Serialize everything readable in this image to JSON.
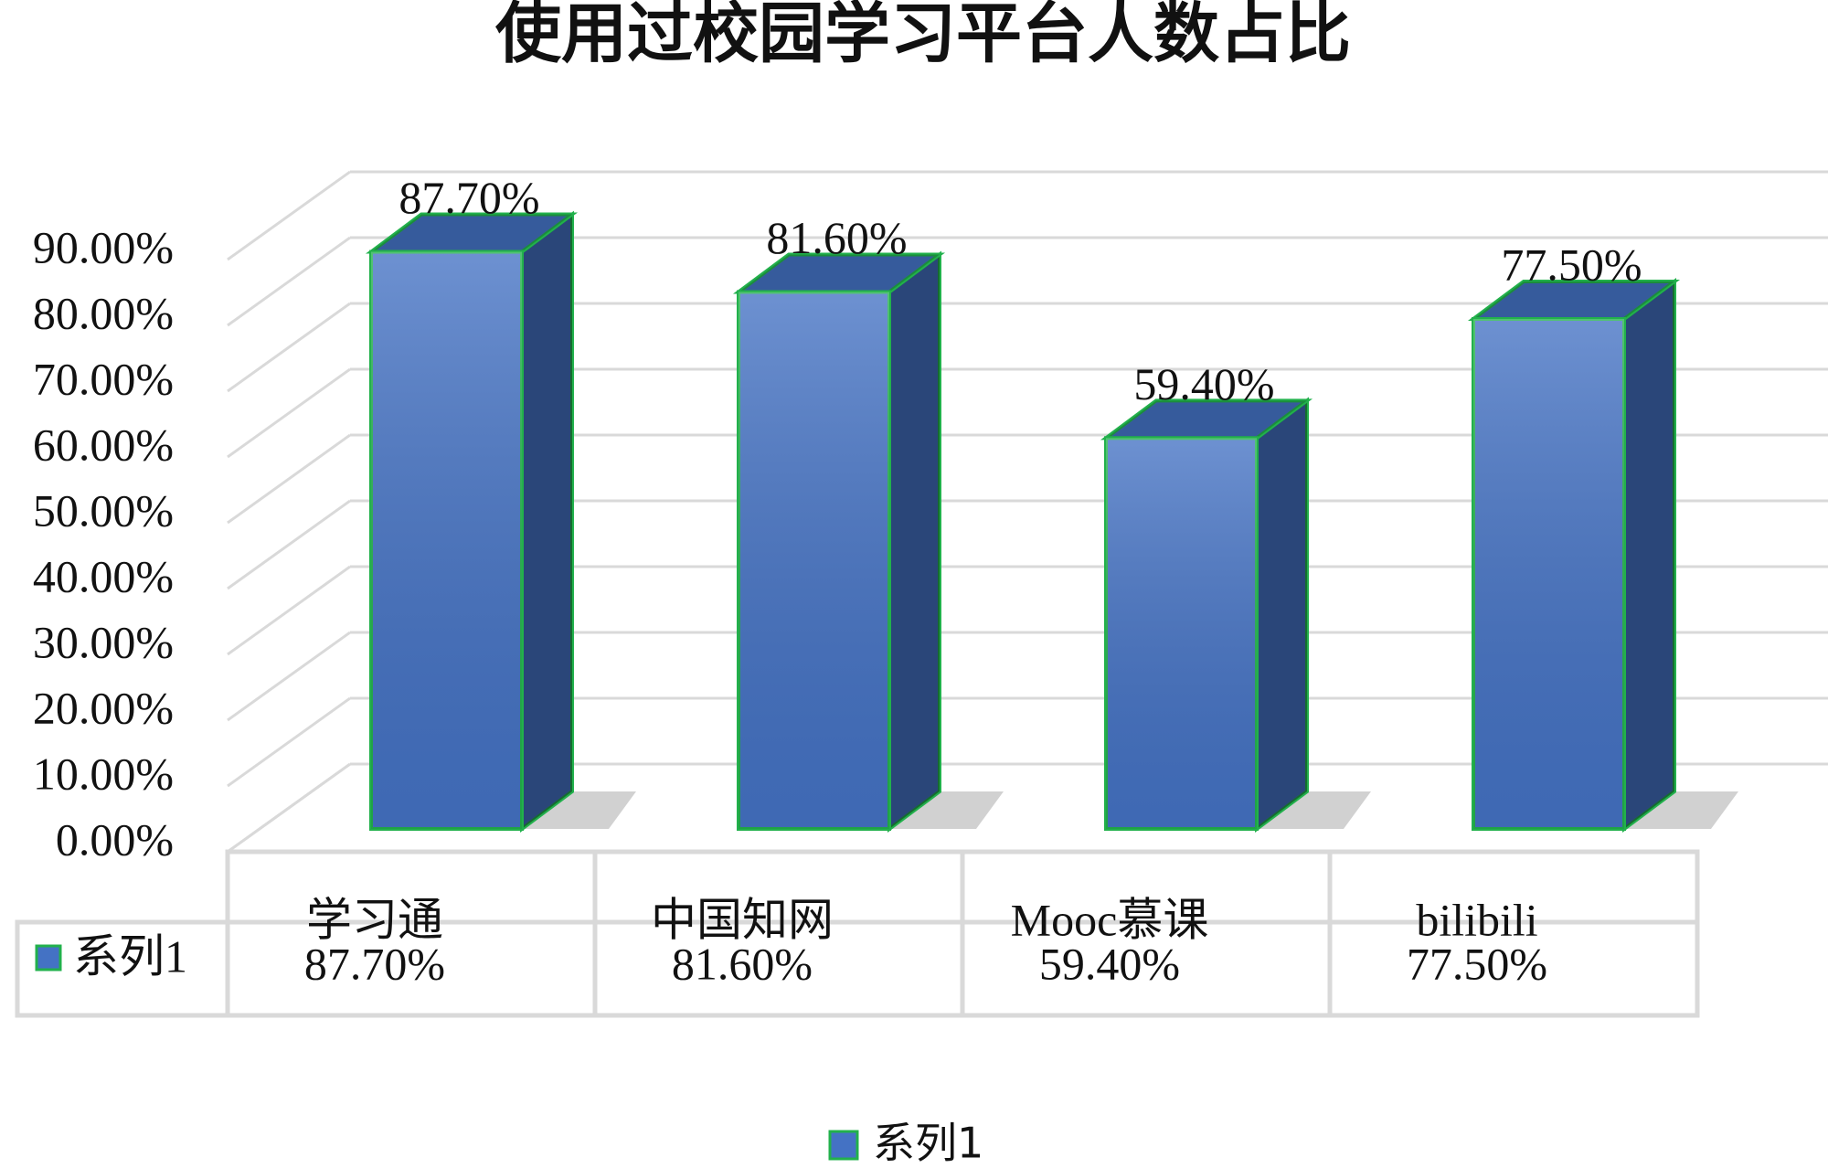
{
  "chart_data": {
    "type": "bar",
    "title": "使用过校园学习平台人数占比",
    "categories": [
      "学习通",
      "中国知网",
      "Mooc慕课",
      "bilibili"
    ],
    "series": [
      {
        "name": "系列1",
        "color": "#4472c4",
        "values": [
          87.7,
          81.6,
          59.4,
          77.5
        ],
        "value_labels": [
          "87.70%",
          "81.60%",
          "59.40%",
          "77.50%"
        ]
      }
    ],
    "ylim": [
      0,
      90
    ],
    "yticks": [
      {
        "value": 0,
        "label": "0.00%"
      },
      {
        "value": 10,
        "label": "10.00%"
      },
      {
        "value": 20,
        "label": "20.00%"
      },
      {
        "value": 30,
        "label": "30.00%"
      },
      {
        "value": 40,
        "label": "40.00%"
      },
      {
        "value": 50,
        "label": "50.00%"
      },
      {
        "value": 60,
        "label": "60.00%"
      },
      {
        "value": 70,
        "label": "70.00%"
      },
      {
        "value": 80,
        "label": "80.00%"
      },
      {
        "value": 90,
        "label": "90.00%"
      }
    ],
    "grid": true
  }
}
